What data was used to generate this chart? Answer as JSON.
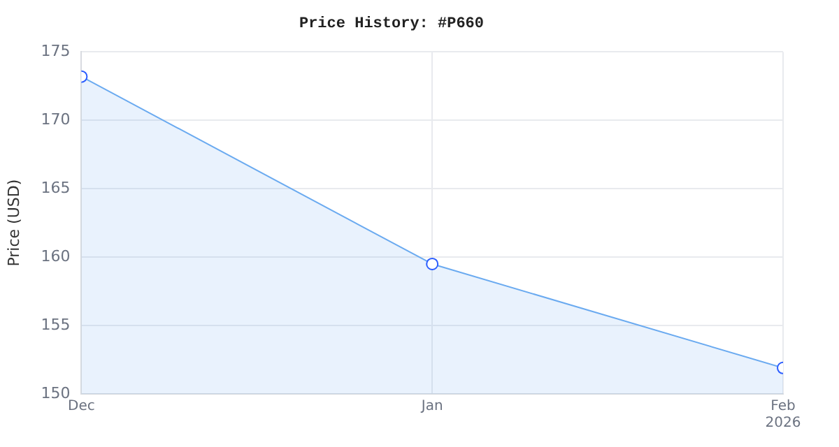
{
  "chart_data": {
    "type": "area",
    "title": "Price History: #P660",
    "ylabel": "Price (USD)",
    "x": [
      "2025-12-01",
      "2026-01-01",
      "2026-02-01"
    ],
    "series": [
      {
        "color": "#6aaaf0",
        "values": [
          173.2,
          159.5,
          151.9
        ]
      }
    ],
    "xlim": [
      "2025-12-01",
      "2026-02-01"
    ],
    "xticks": [
      {
        "value": "2025-12-01",
        "label": "Dec"
      },
      {
        "value": "2026-01-01",
        "label": "Jan"
      },
      {
        "value": "2026-02-01",
        "label": "Feb\n2026"
      }
    ],
    "ylim": [
      150,
      175
    ],
    "yticks": [
      150,
      155,
      160,
      165,
      170,
      175
    ],
    "grid": true,
    "legend": false,
    "marker": "circle",
    "line_style": "solid"
  }
}
